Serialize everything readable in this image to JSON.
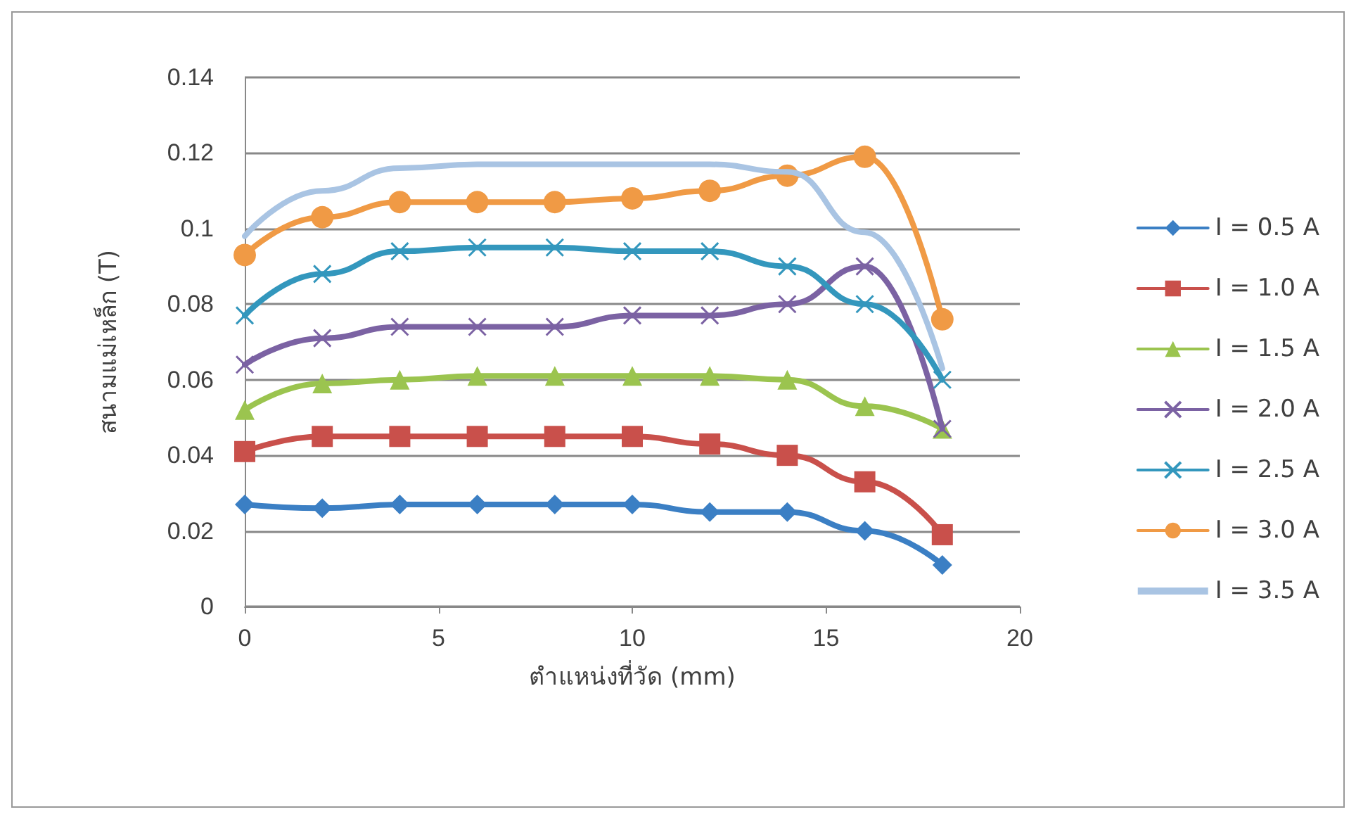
{
  "chart_data": {
    "type": "line",
    "xlabel": "ตำแหน่งที่วัด (mm)",
    "ylabel": "สนามแม่เหล็ก (T)",
    "x": [
      0,
      2,
      4,
      6,
      8,
      10,
      12,
      14,
      16,
      18
    ],
    "xlim": [
      0,
      20
    ],
    "xticks": [
      0,
      5,
      10,
      15,
      20
    ],
    "ylim": [
      0,
      0.14
    ],
    "yticks": [
      0,
      0.02,
      0.04,
      0.06,
      0.08,
      0.1,
      0.12,
      0.14
    ],
    "grid": "y",
    "legend": "right",
    "series": [
      {
        "name": "I = 0.5 A",
        "color": "#3b7fc4",
        "marker": "diamond",
        "values": [
          0.027,
          0.026,
          0.027,
          0.027,
          0.027,
          0.027,
          0.025,
          0.025,
          0.02,
          0.011
        ]
      },
      {
        "name": "I = 1.0 A",
        "color": "#c9504b",
        "marker": "square",
        "values": [
          0.041,
          0.045,
          0.045,
          0.045,
          0.045,
          0.045,
          0.043,
          0.04,
          0.033,
          0.019
        ]
      },
      {
        "name": "I = 1.5 A",
        "color": "#9bc44f",
        "marker": "triangle",
        "values": [
          0.052,
          0.059,
          0.06,
          0.061,
          0.061,
          0.061,
          0.061,
          0.06,
          0.053,
          0.047
        ]
      },
      {
        "name": "I = 2.0 A",
        "color": "#7b62a3",
        "marker": "cross",
        "values": [
          0.064,
          0.071,
          0.074,
          0.074,
          0.074,
          0.077,
          0.077,
          0.08,
          0.09,
          0.047
        ]
      },
      {
        "name": "I = 2.5 A",
        "color": "#3397bd",
        "marker": "cross",
        "values": [
          0.077,
          0.088,
          0.094,
          0.095,
          0.095,
          0.094,
          0.094,
          0.09,
          0.08,
          0.06
        ]
      },
      {
        "name": "I = 3.0 A",
        "color": "#f09a45",
        "marker": "circle",
        "values": [
          0.093,
          0.103,
          0.107,
          0.107,
          0.107,
          0.108,
          0.11,
          0.114,
          0.119,
          0.076
        ]
      },
      {
        "name": "I = 3.5 A",
        "color": "#a9c4e3",
        "marker": "none",
        "values": [
          0.098,
          0.11,
          0.116,
          0.117,
          0.117,
          0.117,
          0.117,
          0.115,
          0.099,
          0.063
        ]
      }
    ]
  }
}
